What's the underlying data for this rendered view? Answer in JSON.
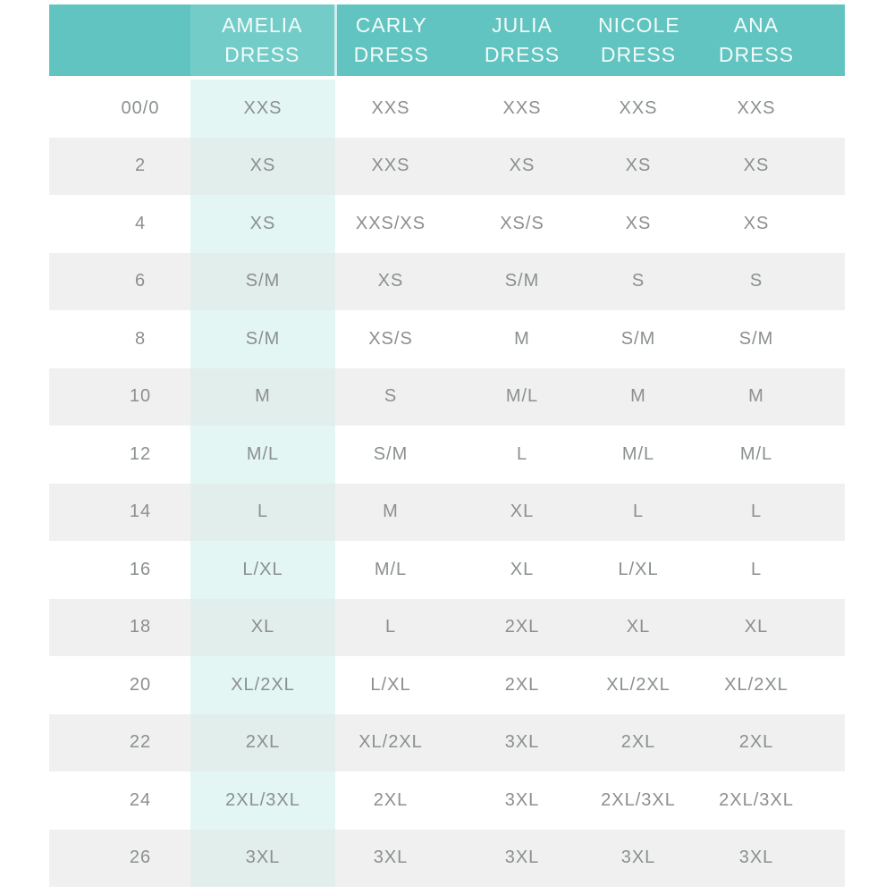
{
  "chart_data": {
    "type": "table",
    "columns": [
      {
        "id": "size",
        "label": ""
      },
      {
        "id": "amelia",
        "label": "AMELIA\nDRESS"
      },
      {
        "id": "carly",
        "label": "CARLY\nDRESS"
      },
      {
        "id": "julia",
        "label": "JULIA\nDRESS"
      },
      {
        "id": "nicole",
        "label": "NICOLE\nDRESS"
      },
      {
        "id": "ana",
        "label": "ANA\nDRESS"
      }
    ],
    "rows": [
      {
        "size": "00/0",
        "amelia": "XXS",
        "carly": "XXS",
        "julia": "XXS",
        "nicole": "XXS",
        "ana": "XXS"
      },
      {
        "size": "2",
        "amelia": "XS",
        "carly": "XXS",
        "julia": "XS",
        "nicole": "XS",
        "ana": "XS"
      },
      {
        "size": "4",
        "amelia": "XS",
        "carly": "XXS/XS",
        "julia": "XS/S",
        "nicole": "XS",
        "ana": "XS"
      },
      {
        "size": "6",
        "amelia": "S/M",
        "carly": "XS",
        "julia": "S/M",
        "nicole": "S",
        "ana": "S"
      },
      {
        "size": "8",
        "amelia": "S/M",
        "carly": "XS/S",
        "julia": "M",
        "nicole": "S/M",
        "ana": "S/M"
      },
      {
        "size": "10",
        "amelia": "M",
        "carly": "S",
        "julia": "M/L",
        "nicole": "M",
        "ana": "M"
      },
      {
        "size": "12",
        "amelia": "M/L",
        "carly": "S/M",
        "julia": "L",
        "nicole": "M/L",
        "ana": "M/L"
      },
      {
        "size": "14",
        "amelia": "L",
        "carly": "M",
        "julia": "XL",
        "nicole": "L",
        "ana": "L"
      },
      {
        "size": "16",
        "amelia": "L/XL",
        "carly": "M/L",
        "julia": "XL",
        "nicole": "L/XL",
        "ana": "L"
      },
      {
        "size": "18",
        "amelia": "XL",
        "carly": "L",
        "julia": "2XL",
        "nicole": "XL",
        "ana": "XL"
      },
      {
        "size": "20",
        "amelia": "XL/2XL",
        "carly": "L/XL",
        "julia": "2XL",
        "nicole": "XL/2XL",
        "ana": "XL/2XL"
      },
      {
        "size": "22",
        "amelia": "2XL",
        "carly": "XL/2XL",
        "julia": "3XL",
        "nicole": "2XL",
        "ana": "2XL"
      },
      {
        "size": "24",
        "amelia": "2XL/3XL",
        "carly": "2XL",
        "julia": "3XL",
        "nicole": "2XL/3XL",
        "ana": "2XL/3XL"
      },
      {
        "size": "26",
        "amelia": "3XL",
        "carly": "3XL",
        "julia": "3XL",
        "nicole": "3XL",
        "ana": "3XL"
      }
    ]
  },
  "colors": {
    "header_teal": "#61c4c0",
    "header_highlight_teal": "#74ccc8",
    "highlight_column_on_white": "#e3f6f3",
    "highlight_column_on_gray": "#e2eeec",
    "alt_row_gray": "#f0f0f0",
    "header_text": "#f2fbfa",
    "body_text": "#8b8f90",
    "background": "#ffffff"
  }
}
